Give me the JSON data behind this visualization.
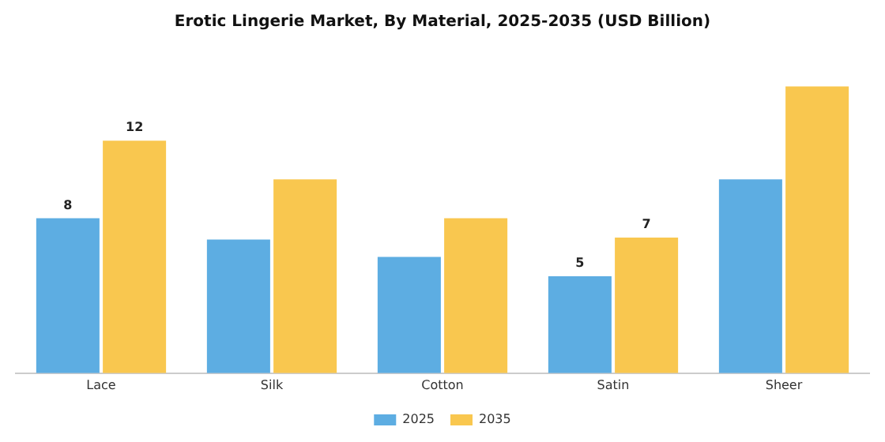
{
  "chart_data": {
    "type": "bar",
    "title": "Erotic Lingerie Market, By Material, 2025-2035 (USD Billion)",
    "categories": [
      "Lace",
      "Silk",
      "Cotton",
      "Satin",
      "Sheer"
    ],
    "series": [
      {
        "name": "2025",
        "color": "#5dade2",
        "values": [
          8,
          6.9,
          6,
          5,
          10
        ],
        "value_labels": [
          "8",
          null,
          null,
          "5",
          null
        ]
      },
      {
        "name": "2035",
        "color": "#f9c74f",
        "values": [
          12,
          10,
          8,
          7,
          14.8
        ],
        "value_labels": [
          "12",
          null,
          null,
          "7",
          null
        ]
      }
    ],
    "legend": "bottom",
    "grid": false
  }
}
